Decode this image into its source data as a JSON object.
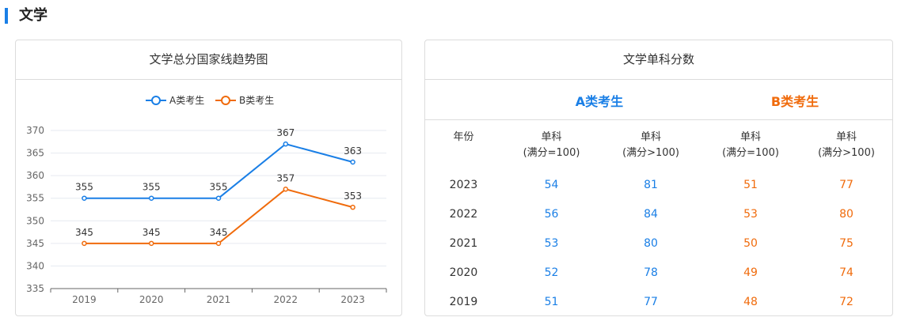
{
  "section": {
    "title": "文学"
  },
  "chart_card": {
    "title": "文学总分国家线趋势图"
  },
  "chart_data": {
    "type": "line",
    "title": "文学总分国家线趋势图",
    "categories": [
      "2019",
      "2020",
      "2021",
      "2022",
      "2023"
    ],
    "series": [
      {
        "name": "A类考生",
        "color": "#1a7fe6",
        "values": [
          355,
          355,
          355,
          367,
          363
        ]
      },
      {
        "name": "B类考生",
        "color": "#f06b0c",
        "values": [
          345,
          345,
          345,
          357,
          353
        ]
      }
    ],
    "ylim": [
      335,
      370
    ],
    "yticks": [
      "335",
      "340",
      "345",
      "350",
      "355",
      "360",
      "365",
      "370"
    ],
    "xlabel": "",
    "ylabel": "",
    "grid": true,
    "legend": "top-center"
  },
  "table_card": {
    "title": "文学单科分数",
    "type_a": "A类考生",
    "type_b": "B类考生",
    "headers": {
      "year": "年份",
      "col1_line1": "单科",
      "col1_line2": "(满分=100)",
      "col2_line1": "单科",
      "col2_line2": "(满分>100)",
      "col3_line1": "单科",
      "col3_line2": "(满分=100)",
      "col4_line1": "单科",
      "col4_line2": "(满分>100)"
    },
    "rows": [
      {
        "year": "2023",
        "a100": "54",
        "aover": "81",
        "b100": "51",
        "bover": "77"
      },
      {
        "year": "2022",
        "a100": "56",
        "aover": "84",
        "b100": "53",
        "bover": "80"
      },
      {
        "year": "2021",
        "a100": "53",
        "aover": "80",
        "b100": "50",
        "bover": "75"
      },
      {
        "year": "2020",
        "a100": "52",
        "aover": "78",
        "b100": "49",
        "bover": "74"
      },
      {
        "year": "2019",
        "a100": "51",
        "aover": "77",
        "b100": "48",
        "bover": "72"
      }
    ]
  }
}
